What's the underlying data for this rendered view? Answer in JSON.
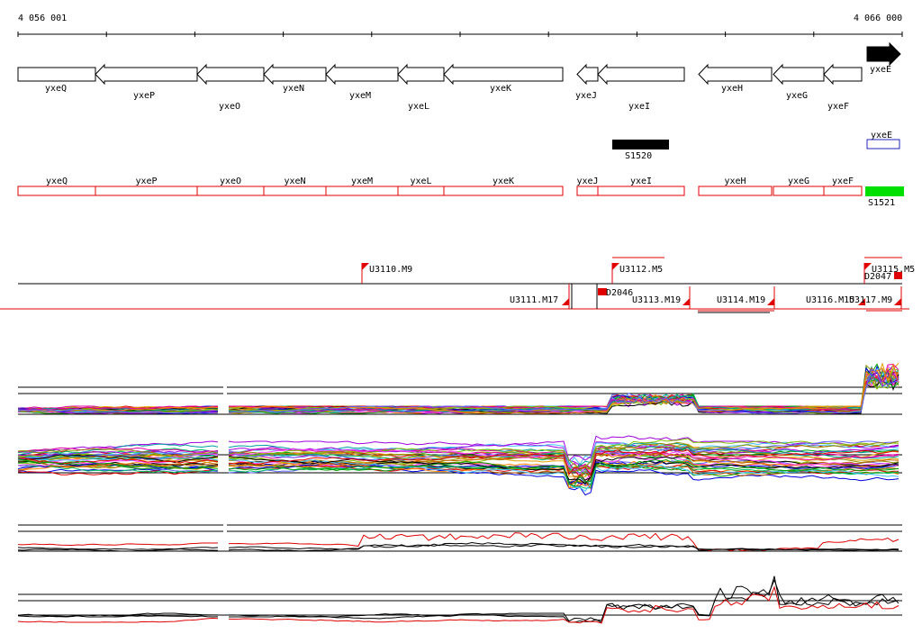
{
  "ruler": {
    "start_label": "4 056 001",
    "end_label": "4 066 000"
  },
  "genes_strand": [
    {
      "name": "yxeQ",
      "dir": "none"
    },
    {
      "name": "yxeP",
      "dir": "left"
    },
    {
      "name": "yxeO",
      "dir": "left"
    },
    {
      "name": "yxeN",
      "dir": "left"
    },
    {
      "name": "yxeM",
      "dir": "left"
    },
    {
      "name": "yxeL",
      "dir": "left"
    },
    {
      "name": "yxeK",
      "dir": "left"
    },
    {
      "name": "yxeJ",
      "dir": "left"
    },
    {
      "name": "yxeI",
      "dir": "left"
    },
    {
      "name": "yxeH",
      "dir": "left"
    },
    {
      "name": "yxeG",
      "dir": "left"
    },
    {
      "name": "yxeF",
      "dir": "left"
    },
    {
      "name": "yxeE",
      "dir": "right"
    }
  ],
  "features": [
    {
      "name": "S1520",
      "color": "#000000"
    },
    {
      "name": "yxeE",
      "color": "#2020c0"
    },
    {
      "name": "S1521",
      "color": "#00e000"
    }
  ],
  "genes_annot": [
    "yxeQ",
    "yxeP",
    "yxeO",
    "yxeN",
    "yxeM",
    "yxeL",
    "yxeK",
    "yxeJ",
    "yxeI",
    "yxeH",
    "yxeG",
    "yxeF"
  ],
  "segments_top": [
    "U3110.M9",
    "U3112.M5",
    "U3115.M5",
    "D2047"
  ],
  "segments_bottom": [
    "U3111.M17",
    "D2046",
    "U3113.M19",
    "U3114.M19",
    "U3116.M15",
    "U3117.M9"
  ],
  "colors": {
    "annot": "#e00000",
    "line": "#000000",
    "strand_fill": "#ffffff"
  },
  "tracks": [
    {
      "name": "expression-track-1",
      "type": "multi"
    },
    {
      "name": "expression-track-2",
      "type": "multi"
    },
    {
      "name": "expression-track-3",
      "type": "pair"
    },
    {
      "name": "expression-track-4",
      "type": "pair"
    }
  ]
}
